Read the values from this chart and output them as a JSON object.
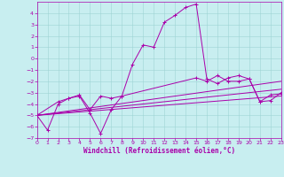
{
  "xlabel": "Windchill (Refroidissement éolien,°C)",
  "bg_color": "#c8eef0",
  "line_color": "#aa00aa",
  "grid_color": "#9dd4d4",
  "xlim": [
    0,
    23
  ],
  "ylim": [
    -7,
    5
  ],
  "xticks": [
    0,
    1,
    2,
    3,
    4,
    5,
    6,
    7,
    8,
    9,
    10,
    11,
    12,
    13,
    14,
    15,
    16,
    17,
    18,
    19,
    20,
    21,
    22,
    23
  ],
  "yticks": [
    -7,
    -6,
    -5,
    -4,
    -3,
    -2,
    -1,
    0,
    1,
    2,
    3,
    4
  ],
  "series": [
    {
      "x": [
        0,
        1,
        2,
        3,
        4,
        5,
        6,
        7,
        8,
        9,
        10,
        11,
        12,
        13,
        14,
        15,
        16,
        17,
        18,
        19,
        20,
        21,
        22,
        23
      ],
      "y": [
        -5.0,
        -6.3,
        -4.0,
        -3.5,
        -3.3,
        -4.8,
        -6.6,
        -4.5,
        -3.3,
        -0.5,
        1.2,
        1.0,
        3.2,
        3.8,
        4.5,
        4.8,
        -1.8,
        -2.2,
        -1.7,
        -1.5,
        -1.8,
        -3.8,
        -3.2,
        -3.1
      ],
      "marker": true
    },
    {
      "x": [
        0,
        2,
        3,
        4,
        5,
        6,
        7,
        8,
        15,
        16,
        17,
        18,
        19,
        20,
        21,
        22,
        23
      ],
      "y": [
        -5.0,
        -3.8,
        -3.5,
        -3.2,
        -4.5,
        -3.3,
        -3.5,
        -3.3,
        -1.7,
        -2.0,
        -1.5,
        -2.0,
        -2.0,
        -1.8,
        -3.8,
        -3.7,
        -3.0
      ],
      "marker": true
    },
    {
      "x": [
        0,
        23
      ],
      "y": [
        -5.0,
        -3.3
      ],
      "marker": false
    },
    {
      "x": [
        0,
        23
      ],
      "y": [
        -5.0,
        -2.7
      ],
      "marker": false
    },
    {
      "x": [
        0,
        23
      ],
      "y": [
        -5.0,
        -2.0
      ],
      "marker": false
    }
  ]
}
